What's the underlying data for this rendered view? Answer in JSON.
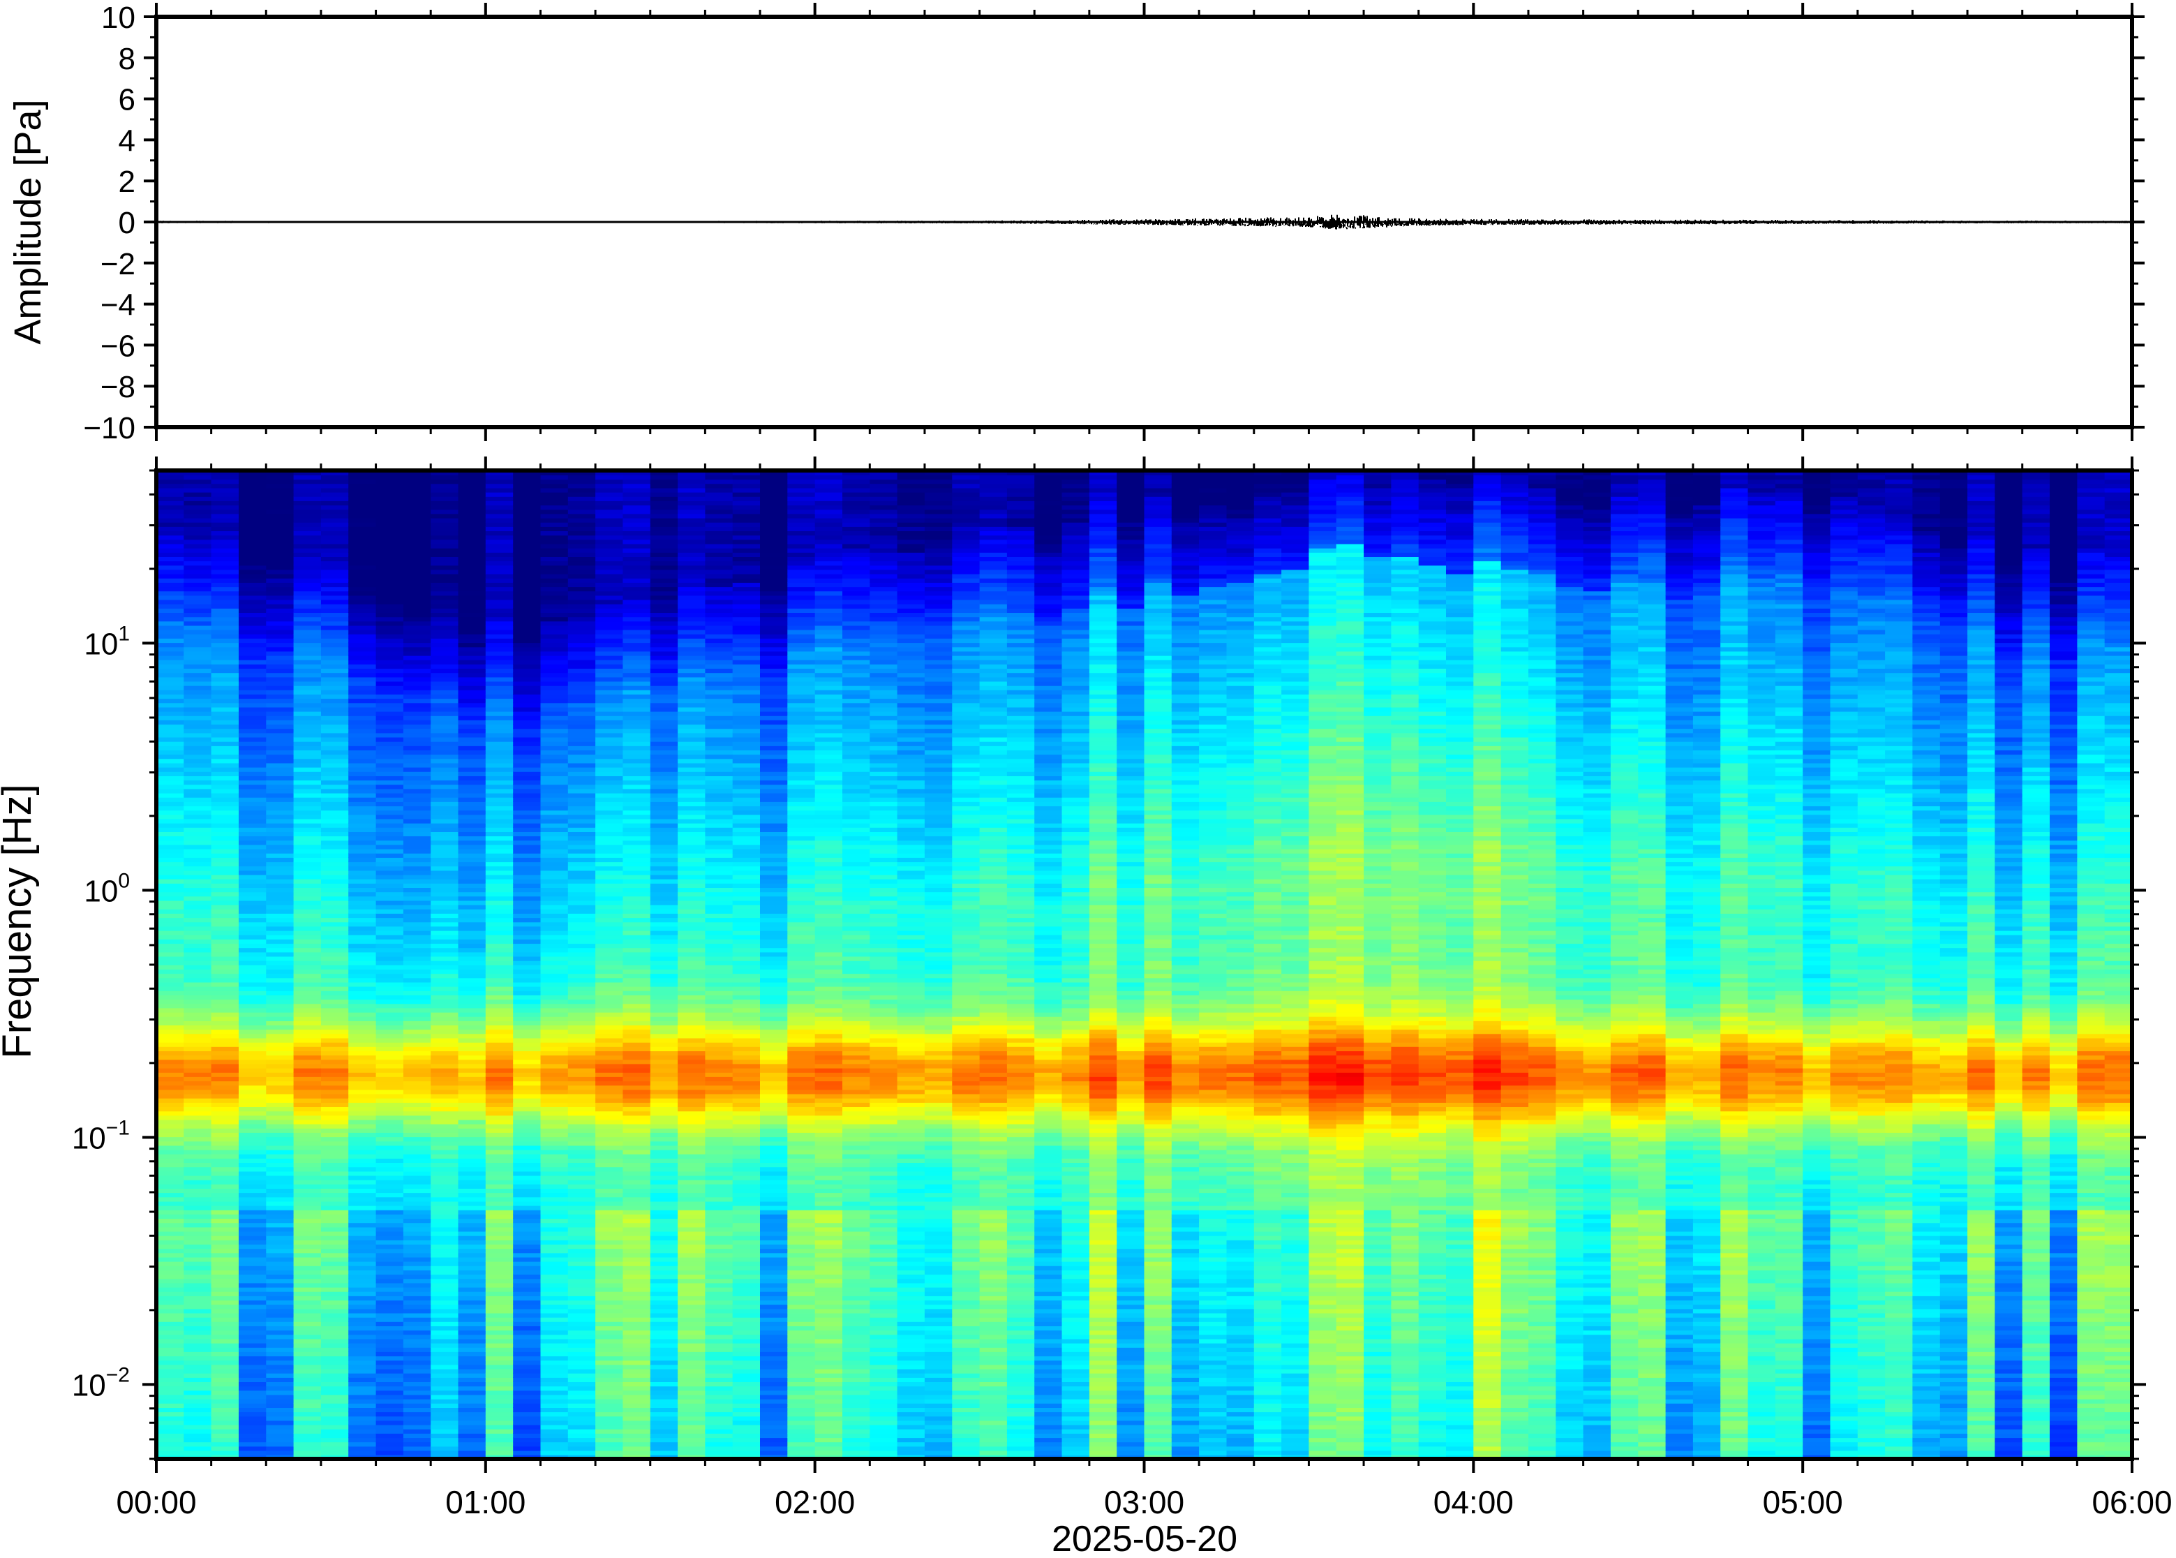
{
  "figure": {
    "date_label": "2025-05-20"
  },
  "chart_data": [
    {
      "type": "line",
      "name": "waveform",
      "ylabel": "Amplitude [Pa]",
      "xlabel": "",
      "xlim": [
        "00:00",
        "06:00"
      ],
      "ylim": [
        -10,
        10
      ],
      "y_ticks": [
        "10",
        "8",
        "6",
        "4",
        "2",
        "0",
        "−2",
        "−4",
        "−6",
        "−8",
        "−10"
      ],
      "y_tick_values": [
        10,
        8,
        6,
        4,
        2,
        0,
        -2,
        -4,
        -6,
        -8,
        -10
      ],
      "envelope": {
        "x_hours": [
          0,
          0.5,
          1,
          1.5,
          2,
          2.5,
          2.75,
          3,
          3.25,
          3.5,
          3.6,
          3.7,
          3.8,
          4,
          4.5,
          5,
          5.5,
          6
        ],
        "half_amplitude_pa": [
          0.06,
          0.05,
          0.05,
          0.05,
          0.06,
          0.07,
          0.1,
          0.15,
          0.2,
          0.25,
          0.4,
          0.3,
          0.2,
          0.15,
          0.12,
          0.1,
          0.07,
          0.06
        ]
      },
      "line_color": "#000000"
    },
    {
      "type": "heatmap",
      "name": "spectrogram",
      "ylabel": "Frequency [Hz]",
      "xlabel": "2025-05-20",
      "x_tick_labels": [
        "00:00",
        "01:00",
        "02:00",
        "03:00",
        "04:00",
        "05:00",
        "06:00"
      ],
      "x_tick_hours": [
        0,
        1,
        2,
        3,
        4,
        5,
        6
      ],
      "yscale": "log",
      "ylim": [
        0.005,
        50
      ],
      "y_ticks": [
        {
          "base": "10",
          "exp": "−2",
          "value": 0.01
        },
        {
          "base": "10",
          "exp": "−1",
          "value": 0.1
        },
        {
          "base": "10",
          "exp": "0",
          "value": 1
        },
        {
          "base": "10",
          "exp": "1",
          "value": 10
        }
      ],
      "colormap": "jet",
      "colors": [
        "#00007f",
        "#0000ff",
        "#007fff",
        "#00ffff",
        "#7fff7f",
        "#ffff00",
        "#ff7f00"
      ],
      "features": {
        "microseism_peak_hz": 0.18,
        "noise_ceiling_hz_by_hour": {
          "hours": [
            0,
            0.5,
            1,
            1.5,
            2,
            2.5,
            3,
            3.5,
            3.6,
            4,
            4.5,
            5,
            5.5,
            6
          ],
          "ceiling_hz": [
            12,
            9,
            5,
            6,
            9,
            12,
            16,
            22,
            25,
            20,
            16,
            18,
            11,
            9
          ]
        },
        "energy_burst_hours": [
          2.9,
          4.3
        ]
      }
    }
  ]
}
